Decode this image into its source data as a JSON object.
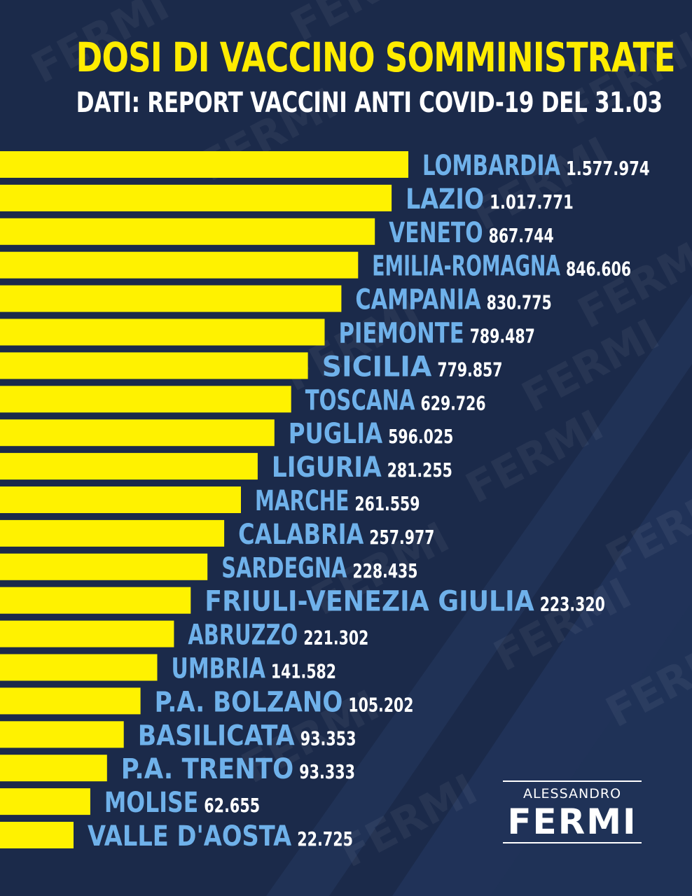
{
  "colors": {
    "background": "#1b2a4a",
    "bar": "#fff200",
    "region_label": "#6fb1ea",
    "value_label": "#ffffff",
    "title": "#ffec00",
    "subtitle": "#ffffff"
  },
  "header": {
    "title": "DOSI DI VACCINO SOMMINISTRATE",
    "subtitle": "DATI: REPORT VACCINI ANTI COVID-19 DEL 31.03"
  },
  "logo": {
    "name": "ALESSANDRO",
    "surname": "FERMI",
    "watermark": "FERMI"
  },
  "chart_data": {
    "type": "bar",
    "orientation": "horizontal",
    "title": "DOSI DI VACCINO SOMMINISTRATE",
    "subtitle": "DATI: REPORT VACCINI ANTI COVID-19 DEL 31.03",
    "categories": [
      "LOMBARDIA",
      "LAZIO",
      "VENETO",
      "EMILIA-ROMAGNA",
      "CAMPANIA",
      "PIEMONTE",
      "SICILIA",
      "TOSCANA",
      "PUGLIA",
      "LIGURIA",
      "MARCHE",
      "CALABRIA",
      "SARDEGNA",
      "FRIULI-VENEZIA GIULIA",
      "ABRUZZO",
      "UMBRIA",
      "P.A. BOLZANO",
      "BASILICATA",
      "P.A. TRENTO",
      "MOLISE",
      "VALLE D'AOSTA"
    ],
    "values": [
      1577974,
      1017771,
      867744,
      846606,
      830775,
      789487,
      779857,
      629726,
      596025,
      281255,
      261559,
      257977,
      228435,
      223320,
      221302,
      141582,
      105202,
      93353,
      93333,
      62655,
      22725
    ],
    "labels": [
      "1.577.974",
      "1.017.771",
      "867.744",
      "846.606",
      "830.775",
      "789.487",
      "779.857",
      "629.726",
      "596.025",
      "281.255",
      "261.559",
      "257.977",
      "228.435",
      "223.320",
      "221.302",
      "141.582",
      "105.202",
      "93.353",
      "93.333",
      "62.655",
      "22.725"
    ],
    "xlabel": "",
    "ylabel": "",
    "grid": false,
    "legend": "none"
  }
}
